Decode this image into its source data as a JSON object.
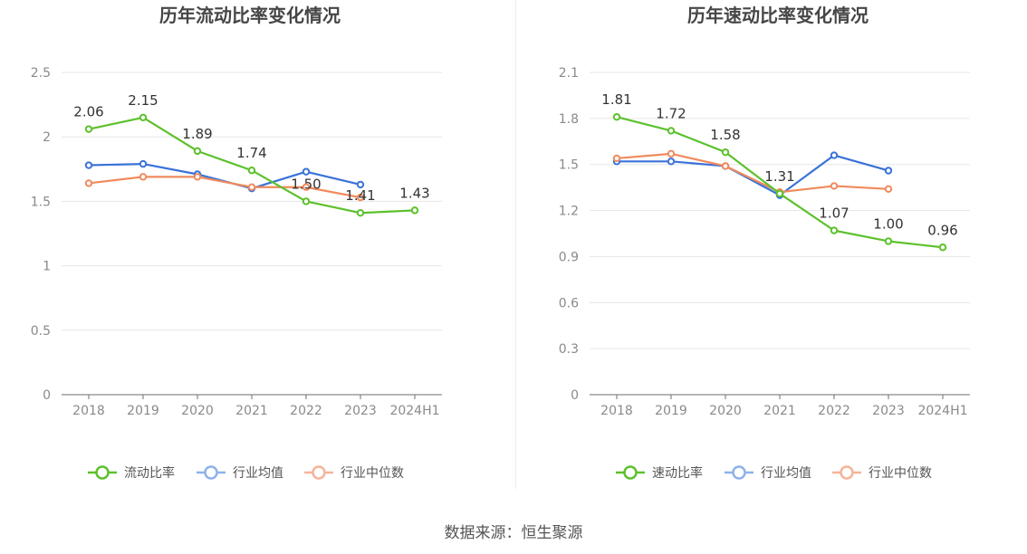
{
  "chart_data": [
    {
      "type": "line",
      "title": "历年流动比率变化情况",
      "categories": [
        "2018",
        "2019",
        "2020",
        "2021",
        "2022",
        "2023",
        "2024H1"
      ],
      "ylim": [
        0,
        2.5
      ],
      "yticks": [
        0,
        0.5,
        1,
        1.5,
        2,
        2.5
      ],
      "ytick_labels": [
        "0",
        "0.5",
        "1",
        "1.5",
        "2",
        "2.5"
      ],
      "series": [
        {
          "name": "流动比率",
          "color": "#5cc12c",
          "values": [
            2.06,
            2.15,
            1.89,
            1.74,
            1.5,
            1.41,
            1.43
          ],
          "labels": [
            "2.06",
            "2.15",
            "1.89",
            "1.74",
            "1.50",
            "1.41",
            "1.43"
          ]
        },
        {
          "name": "行业均值",
          "color": "#3a72d8",
          "values": [
            1.78,
            1.79,
            1.71,
            1.6,
            1.73,
            1.63,
            null
          ]
        },
        {
          "name": "行业中位数",
          "color": "#f08a5d",
          "values": [
            1.64,
            1.69,
            1.69,
            1.61,
            1.61,
            1.53,
            null
          ]
        }
      ],
      "legend_position": "bottom"
    },
    {
      "type": "line",
      "title": "历年速动比率变化情况",
      "categories": [
        "2018",
        "2019",
        "2020",
        "2021",
        "2022",
        "2023",
        "2024H1"
      ],
      "ylim": [
        0,
        2.1
      ],
      "yticks": [
        0,
        0.3,
        0.6,
        0.9,
        1.2,
        1.5,
        1.8,
        2.1
      ],
      "ytick_labels": [
        "0",
        "0.3",
        "0.6",
        "0.9",
        "1.2",
        "1.5",
        "1.8",
        "2.1"
      ],
      "series": [
        {
          "name": "速动比率",
          "color": "#5cc12c",
          "values": [
            1.81,
            1.72,
            1.58,
            1.31,
            1.07,
            1.0,
            0.96
          ],
          "labels": [
            "1.81",
            "1.72",
            "1.58",
            "1.31",
            "1.07",
            "1.00",
            "0.96"
          ]
        },
        {
          "name": "行业均值",
          "color": "#3a72d8",
          "values": [
            1.52,
            1.52,
            1.49,
            1.3,
            1.56,
            1.46,
            null
          ]
        },
        {
          "name": "行业中位数",
          "color": "#f08a5d",
          "values": [
            1.54,
            1.57,
            1.49,
            1.32,
            1.36,
            1.34,
            null
          ]
        }
      ],
      "legend_position": "bottom"
    }
  ],
  "source": "数据来源：恒生聚源"
}
